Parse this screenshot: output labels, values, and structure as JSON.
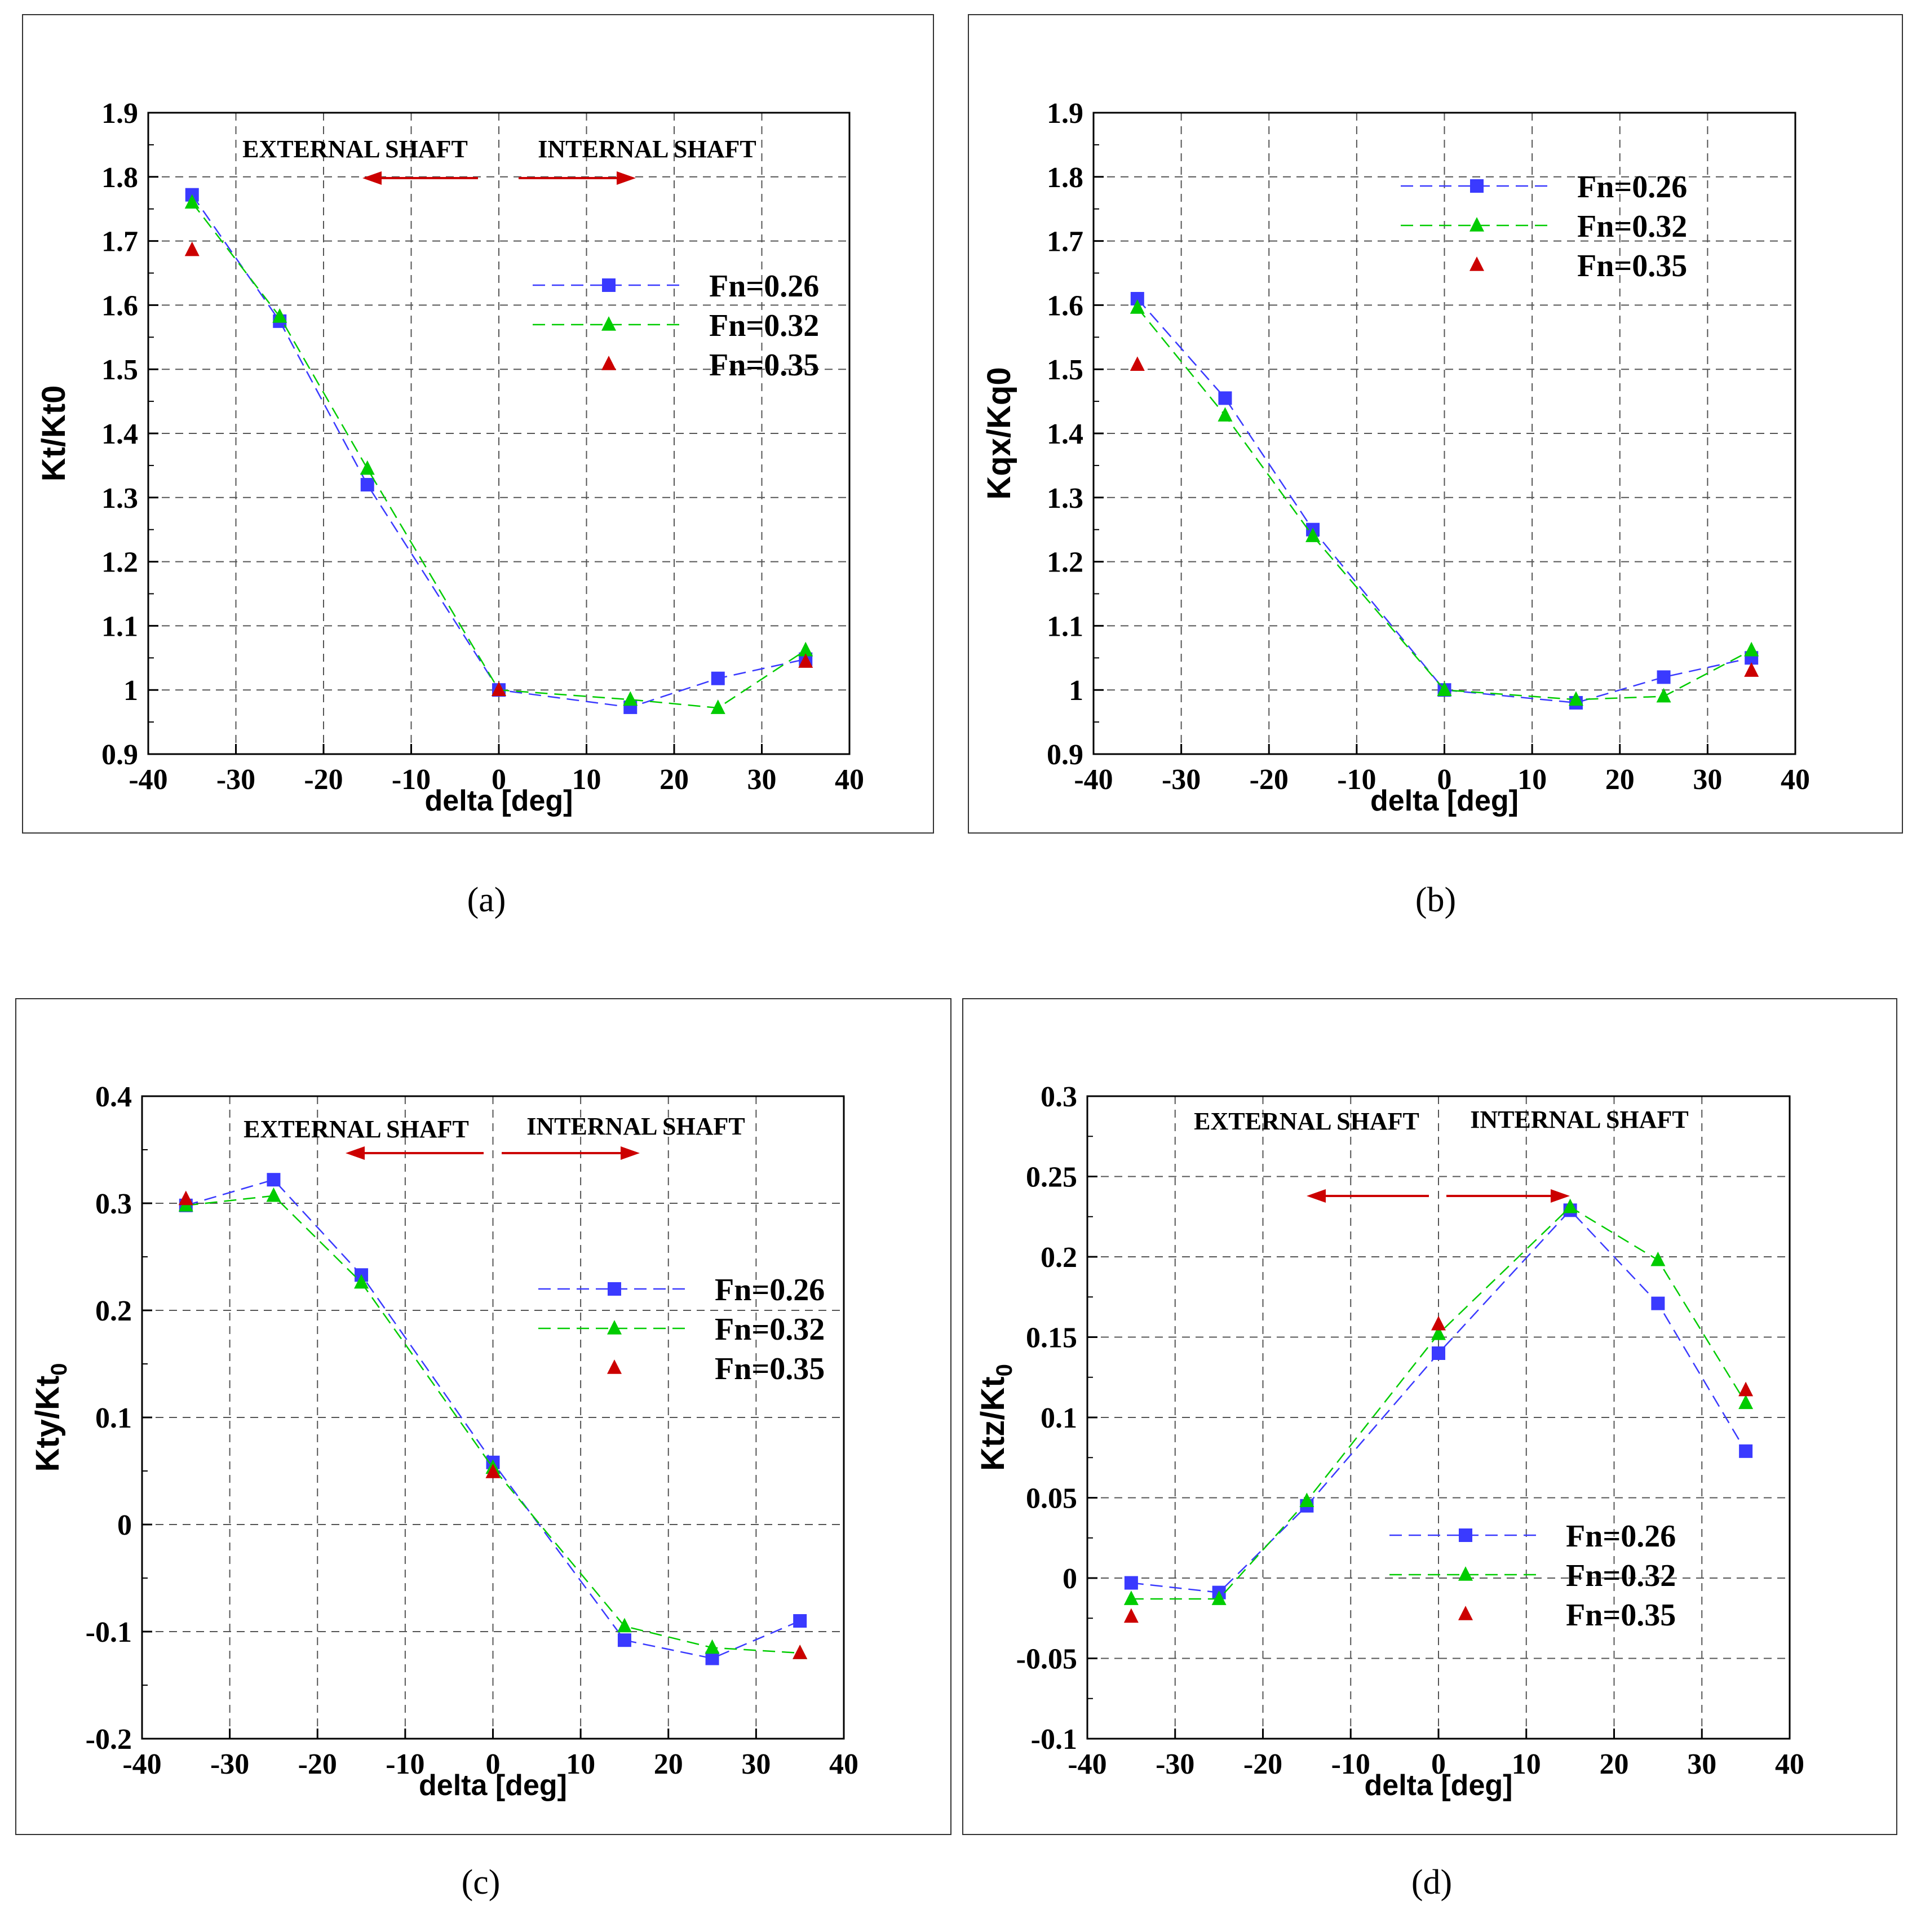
{
  "panel_labels": [
    "(a)",
    "(b)",
    "(c)",
    "(d)"
  ],
  "legend_labels": [
    "Fn=0.26",
    "Fn=0.32",
    "Fn=0.35"
  ],
  "colors": {
    "fn026": "#3a3aff",
    "fn032": "#00cc00",
    "fn035": "#cc0000",
    "arrow": "#cc0000",
    "grid": "#555555"
  },
  "chart_data": [
    {
      "id": "a",
      "type": "line",
      "xlabel": "delta [deg]",
      "ylabel": "Kt/Kt0",
      "xlim": [
        -40,
        40
      ],
      "ylim": [
        0.9,
        1.9
      ],
      "xticks": [
        -40,
        -30,
        -20,
        -10,
        0,
        10,
        20,
        30,
        40
      ],
      "yticks": [
        0.9,
        1,
        1.1,
        1.2,
        1.3,
        1.4,
        1.5,
        1.6,
        1.7,
        1.8,
        1.9
      ],
      "annotations": [
        "EXTERNAL SHAFT",
        "INTERNAL SHAFT"
      ],
      "series": [
        {
          "name": "Fn=0.26",
          "x": [
            -35,
            -25,
            -15,
            0,
            15,
            25,
            35
          ],
          "y": [
            1.772,
            1.575,
            1.32,
            1.0,
            0.973,
            1.018,
            1.048
          ]
        },
        {
          "name": "Fn=0.32",
          "x": [
            -35,
            -25,
            -15,
            0,
            15,
            25,
            35
          ],
          "y": [
            1.76,
            1.582,
            1.345,
            1.0,
            0.985,
            0.972,
            1.062
          ]
        },
        {
          "name": "Fn=0.35",
          "x": [
            -35,
            0,
            35
          ],
          "y": [
            1.686,
            1.0,
            1.044
          ]
        }
      ]
    },
    {
      "id": "b",
      "type": "line",
      "xlabel": "delta [deg]",
      "ylabel": "Kqx/Kq0",
      "xlim": [
        -40,
        40
      ],
      "ylim": [
        0.9,
        1.9
      ],
      "xticks": [
        -40,
        -30,
        -20,
        -10,
        0,
        10,
        20,
        30,
        40
      ],
      "yticks": [
        0.9,
        1,
        1.1,
        1.2,
        1.3,
        1.4,
        1.5,
        1.6,
        1.7,
        1.8,
        1.9
      ],
      "annotations": [],
      "series": [
        {
          "name": "Fn=0.26",
          "x": [
            -35,
            -25,
            -15,
            0,
            15,
            25,
            35
          ],
          "y": [
            1.61,
            1.455,
            1.25,
            1.0,
            0.98,
            1.02,
            1.05
          ]
        },
        {
          "name": "Fn=0.32",
          "x": [
            -35,
            -25,
            -15,
            0,
            15,
            25,
            35
          ],
          "y": [
            1.596,
            1.428,
            1.24,
            1.0,
            0.985,
            0.99,
            1.062
          ]
        },
        {
          "name": "Fn=0.35",
          "x": [
            -35,
            35
          ],
          "y": [
            1.507,
            1.03
          ]
        }
      ]
    },
    {
      "id": "c",
      "type": "line",
      "xlabel": "delta [deg]",
      "ylabel": "Kty/Kt",
      "ylabel_sub": "0",
      "xlim": [
        -40,
        40
      ],
      "ylim": [
        -0.2,
        0.4
      ],
      "xticks": [
        -40,
        -30,
        -20,
        -10,
        0,
        10,
        20,
        30,
        40
      ],
      "yticks": [
        -0.2,
        -0.1,
        0,
        0.1,
        0.2,
        0.3,
        0.4
      ],
      "annotations": [
        "EXTERNAL SHAFT",
        "INTERNAL SHAFT"
      ],
      "series": [
        {
          "name": "Fn=0.26",
          "x": [
            -35,
            -25,
            -15,
            0,
            15,
            25,
            35
          ],
          "y": [
            0.298,
            0.322,
            0.233,
            0.058,
            -0.108,
            -0.125,
            -0.09
          ]
        },
        {
          "name": "Fn=0.32",
          "x": [
            -35,
            -25,
            -15,
            0,
            15,
            25,
            35
          ],
          "y": [
            0.298,
            0.307,
            0.226,
            0.053,
            -0.095,
            -0.115,
            -0.12
          ]
        },
        {
          "name": "Fn=0.35",
          "x": [
            -35,
            0,
            35
          ],
          "y": [
            0.304,
            0.049,
            -0.12
          ]
        }
      ]
    },
    {
      "id": "d",
      "type": "line",
      "xlabel": "delta [deg]",
      "ylabel": "Ktz/Kt",
      "ylabel_sub": "0",
      "xlim": [
        -40,
        40
      ],
      "ylim": [
        -0.1,
        0.3
      ],
      "xticks": [
        -40,
        -30,
        -20,
        -10,
        0,
        10,
        20,
        30,
        40
      ],
      "yticks": [
        -0.1,
        -0.05,
        0,
        0.05,
        0.1,
        0.15,
        0.2,
        0.25,
        0.3
      ],
      "annotations": [
        "EXTERNAL SHAFT",
        "INTERNAL SHAFT"
      ],
      "series": [
        {
          "name": "Fn=0.26",
          "x": [
            -35,
            -25,
            -15,
            0,
            15,
            25,
            35
          ],
          "y": [
            -0.003,
            -0.009,
            0.045,
            0.14,
            0.229,
            0.171,
            0.079
          ]
        },
        {
          "name": "Fn=0.32",
          "x": [
            -35,
            -25,
            -15,
            0,
            15,
            25,
            35
          ],
          "y": [
            -0.013,
            -0.013,
            0.048,
            0.152,
            0.231,
            0.198,
            0.109
          ]
        },
        {
          "name": "Fn=0.35",
          "x": [
            -35,
            0,
            35
          ],
          "y": [
            -0.024,
            0.158,
            0.117
          ]
        }
      ]
    }
  ]
}
